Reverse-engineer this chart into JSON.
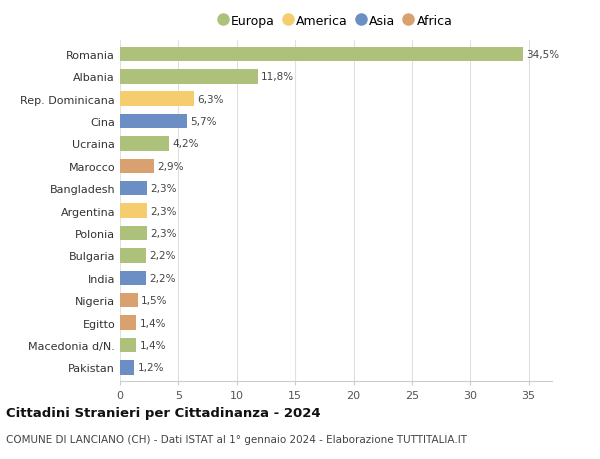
{
  "countries": [
    "Romania",
    "Albania",
    "Rep. Dominicana",
    "Cina",
    "Ucraina",
    "Marocco",
    "Bangladesh",
    "Argentina",
    "Polonia",
    "Bulgaria",
    "India",
    "Nigeria",
    "Egitto",
    "Macedonia d/N.",
    "Pakistan"
  ],
  "values": [
    34.5,
    11.8,
    6.3,
    5.7,
    4.2,
    2.9,
    2.3,
    2.3,
    2.3,
    2.2,
    2.2,
    1.5,
    1.4,
    1.4,
    1.2
  ],
  "labels": [
    "34,5%",
    "11,8%",
    "6,3%",
    "5,7%",
    "4,2%",
    "2,9%",
    "2,3%",
    "2,3%",
    "2,3%",
    "2,2%",
    "2,2%",
    "1,5%",
    "1,4%",
    "1,4%",
    "1,2%"
  ],
  "continent": [
    "Europa",
    "Europa",
    "America",
    "Asia",
    "Europa",
    "Africa",
    "Asia",
    "America",
    "Europa",
    "Europa",
    "Asia",
    "Africa",
    "Africa",
    "Europa",
    "Asia"
  ],
  "colors": {
    "Europa": "#adc17a",
    "America": "#f5cc6e",
    "Asia": "#6b8ec4",
    "Africa": "#d9a070"
  },
  "legend_order": [
    "Europa",
    "America",
    "Asia",
    "Africa"
  ],
  "title": "Cittadini Stranieri per Cittadinanza - 2024",
  "subtitle": "COMUNE DI LANCIANO (CH) - Dati ISTAT al 1° gennaio 2024 - Elaborazione TUTTITALIA.IT",
  "xlim": [
    0,
    37
  ],
  "xticks": [
    0,
    5,
    10,
    15,
    20,
    25,
    30,
    35
  ],
  "background_color": "#ffffff",
  "grid_color": "#e0e0e0",
  "bar_height": 0.65,
  "figsize": [
    6.0,
    4.6
  ],
  "dpi": 100
}
